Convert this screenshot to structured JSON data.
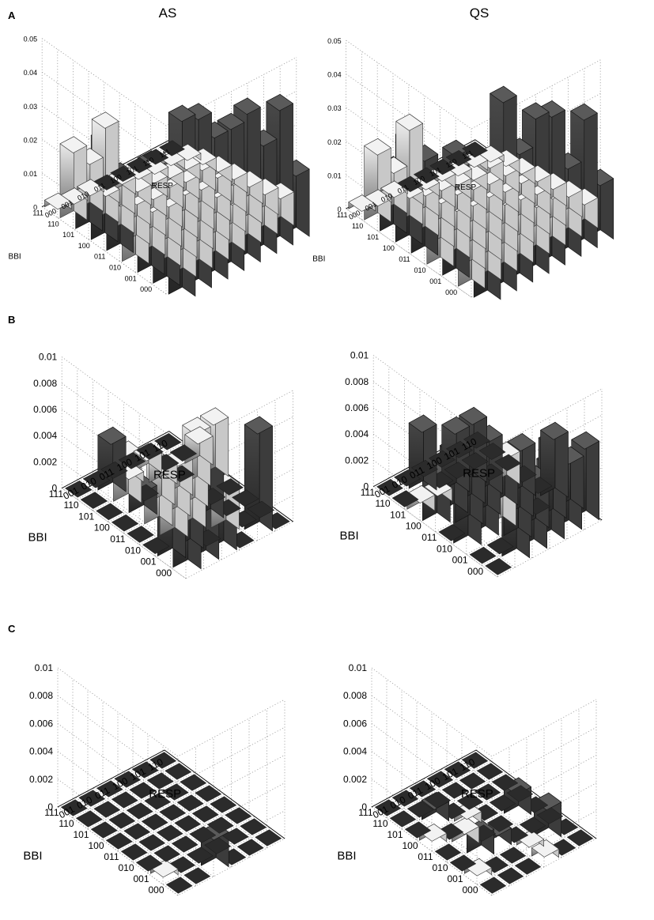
{
  "figure": {
    "panel_labels": [
      "A",
      "B",
      "C"
    ],
    "column_titles": [
      "AS",
      "QS"
    ]
  },
  "colors": {
    "dark": "#3a3a3a",
    "light": "#ececec",
    "floor": "#2b2b2b"
  },
  "chart_data": [
    {
      "id": "A-AS",
      "panel": "A",
      "column": "AS",
      "type": "bar3d",
      "title": "AS",
      "xlabel": "BBI",
      "ylabel": "RESP",
      "bbi_labels": [
        "000",
        "001",
        "010",
        "011",
        "100",
        "101",
        "110",
        "111"
      ],
      "resp_labels": [
        "000",
        "001",
        "010",
        "011",
        "100",
        "101",
        "110",
        "111"
      ],
      "zlim": [
        0,
        0.05
      ],
      "zticks": [
        "0",
        "0.01",
        "0.02",
        "0.03",
        "0.04",
        "0.05"
      ],
      "values": [
        [
          0.037,
          0.022,
          0.017,
          0.017,
          0.015,
          0.012,
          0.013,
          0.01
        ],
        [
          0.034,
          0.017,
          0.013,
          0.014,
          0.013,
          0.01,
          0.011,
          0.008
        ],
        [
          0.024,
          0.015,
          0.011,
          0.012,
          0.011,
          0.009,
          0.01,
          0.007
        ],
        [
          0.024,
          0.013,
          0.009,
          0.008,
          0.009,
          0.008,
          0.009,
          0.006
        ],
        [
          0.031,
          0.01,
          0.008,
          0.007,
          0.008,
          0.007,
          0.008,
          0.005
        ],
        [
          0.018,
          0.03,
          0.011,
          0.006,
          0.006,
          0.005,
          0.005,
          0.004
        ],
        [
          0.022,
          0.016,
          0.004,
          0.005,
          0.004,
          0.003,
          0.003,
          0.002
        ],
        [
          0.002,
          0.001,
          0.001,
          0.0,
          0.0,
          0.0,
          0.0,
          0.0
        ]
      ],
      "dark_rows": [
        0,
        1,
        3,
        4,
        5
      ],
      "dark_cells": [],
      "back_wall": [
        0.054,
        0.052,
        0.044,
        0.044,
        0.046,
        0.034,
        0.042,
        0.02
      ]
    },
    {
      "id": "A-QS",
      "panel": "A",
      "column": "QS",
      "type": "bar3d",
      "title": "QS",
      "xlabel": "BBI",
      "ylabel": "RESP",
      "bbi_labels": [
        "000",
        "001",
        "010",
        "011",
        "100",
        "101",
        "110",
        "111"
      ],
      "resp_labels": [
        "000",
        "001",
        "010",
        "011",
        "100",
        "101",
        "110",
        "111"
      ],
      "zlim": [
        0,
        0.05
      ],
      "zticks": [
        "0",
        "0.01",
        "0.02",
        "0.03",
        "0.04",
        "0.05"
      ],
      "values": [
        [
          0.025,
          0.021,
          0.015,
          0.014,
          0.012,
          0.011,
          0.012,
          0.009
        ],
        [
          0.038,
          0.015,
          0.014,
          0.013,
          0.011,
          0.01,
          0.01,
          0.008
        ],
        [
          0.024,
          0.017,
          0.012,
          0.011,
          0.01,
          0.009,
          0.008,
          0.007
        ],
        [
          0.03,
          0.013,
          0.01,
          0.009,
          0.009,
          0.008,
          0.008,
          0.006
        ],
        [
          0.032,
          0.012,
          0.009,
          0.009,
          0.008,
          0.007,
          0.007,
          0.005
        ],
        [
          0.02,
          0.03,
          0.008,
          0.007,
          0.006,
          0.005,
          0.006,
          0.004
        ],
        [
          0.022,
          0.014,
          0.004,
          0.004,
          0.004,
          0.003,
          0.003,
          0.002
        ],
        [
          0.002,
          0.001,
          0.001,
          0.0,
          0.0,
          0.0,
          0.0,
          0.0
        ]
      ],
      "dark_rows": [
        1,
        3,
        4,
        5
      ],
      "dark_cells": [],
      "back_wall": [
        0.036,
        0.058,
        0.04,
        0.048,
        0.046,
        0.028,
        0.04,
        0.018
      ]
    },
    {
      "id": "B-AS",
      "panel": "B",
      "column": "AS",
      "type": "bar3d",
      "xlabel": "BBI",
      "ylabel": "RESP",
      "bbi_labels": [
        "000",
        "001",
        "010",
        "011",
        "100",
        "101",
        "110",
        "111"
      ],
      "resp_labels": [
        "001",
        "010",
        "011",
        "100",
        "101",
        "110"
      ],
      "zlim": [
        0,
        0.01
      ],
      "zticks": [
        "0",
        "0.002",
        "0.004",
        "0.006",
        "0.008",
        "0.01"
      ],
      "values": [
        [
          0.0042,
          0.0048,
          0.0052,
          0.0,
          0.008,
          0.0
        ],
        [
          0.0042,
          0.006,
          0.0,
          0.0035,
          0.0,
          0.0
        ],
        [
          0.0,
          0.004,
          0.003,
          0.007,
          0.0,
          0.0
        ],
        [
          0.0,
          0.003,
          0.004,
          0.003,
          0.0,
          0.0
        ],
        [
          0.0,
          0.0022,
          0.0032,
          0.0028,
          0.0045,
          0.0045
        ],
        [
          0.0,
          0.004,
          0.0,
          0.0015,
          0.0,
          0.0022
        ],
        [
          0.0,
          0.0042,
          0.0008,
          0.0015,
          0.0,
          0.0
        ],
        [
          0.0,
          0.0,
          0.0,
          0.0,
          0.0,
          0.0
        ]
      ],
      "dark_rows": [],
      "dark_cells": [
        [
          0,
          0
        ],
        [
          0,
          1
        ],
        [
          0,
          2
        ],
        [
          0,
          4
        ],
        [
          1,
          0
        ],
        [
          1,
          1
        ],
        [
          2,
          3
        ],
        [
          4,
          1
        ],
        [
          6,
          1
        ]
      ],
      "back_wall": []
    },
    {
      "id": "B-QS",
      "panel": "B",
      "column": "QS",
      "type": "bar3d",
      "xlabel": "BBI",
      "ylabel": "RESP",
      "bbi_labels": [
        "000",
        "001",
        "010",
        "011",
        "100",
        "101",
        "110",
        "111"
      ],
      "resp_labels": [
        "001",
        "010",
        "011",
        "100",
        "101",
        "110"
      ],
      "zlim": [
        0,
        0.01
      ],
      "zticks": [
        "0",
        "0.002",
        "0.004",
        "0.006",
        "0.008",
        "0.01"
      ],
      "values": [
        [
          0.0,
          0.005,
          0.0045,
          0.006,
          0.005,
          0.006
        ],
        [
          0.0,
          0.0,
          0.005,
          0.004,
          0.006,
          0.004
        ],
        [
          0.005,
          0.004,
          0.003,
          0.005,
          0.0,
          0.005
        ],
        [
          0.0,
          0.0045,
          0.0045,
          0.004,
          0.004,
          0.0
        ],
        [
          0.004,
          0.005,
          0.0042,
          0.0045,
          0.0025,
          0.0
        ],
        [
          0.0012,
          0.001,
          0.005,
          0.005,
          0.0,
          0.0
        ],
        [
          0.0,
          0.005,
          0.0,
          0.0,
          0.0,
          0.0
        ],
        [
          0.0,
          0.0,
          0.0,
          0.0,
          0.0,
          0.0
        ]
      ],
      "dark_rows": [],
      "dark_cells": [
        [
          0,
          1
        ],
        [
          0,
          2
        ],
        [
          0,
          3
        ],
        [
          0,
          4
        ],
        [
          0,
          5
        ],
        [
          1,
          2
        ],
        [
          1,
          3
        ],
        [
          1,
          4
        ],
        [
          1,
          5
        ],
        [
          2,
          0
        ],
        [
          2,
          1
        ],
        [
          2,
          3
        ],
        [
          2,
          5
        ],
        [
          3,
          1
        ],
        [
          3,
          2
        ],
        [
          3,
          3
        ],
        [
          3,
          4
        ],
        [
          4,
          0
        ],
        [
          4,
          1
        ],
        [
          4,
          2
        ],
        [
          4,
          3
        ],
        [
          5,
          2
        ],
        [
          5,
          3
        ],
        [
          6,
          1
        ]
      ],
      "back_wall": []
    },
    {
      "id": "C-AS",
      "panel": "C",
      "column": "AS",
      "type": "bar3d",
      "xlabel": "BBI",
      "ylabel": "RESP",
      "bbi_labels": [
        "000",
        "001",
        "010",
        "011",
        "100",
        "101",
        "110",
        "111"
      ],
      "resp_labels": [
        "001",
        "010",
        "011",
        "100",
        "101",
        "110"
      ],
      "zlim": [
        0,
        0.01
      ],
      "zticks": [
        "0",
        "0.002",
        "0.004",
        "0.006",
        "0.008",
        "0.01"
      ],
      "values": [
        [
          0.0,
          0.0,
          0.0025,
          0.0,
          0.0,
          0.0
        ],
        [
          0.0004,
          0.0,
          0.0,
          0.0,
          0.0,
          0.0
        ],
        [
          0.0,
          0.0,
          0.0,
          0.0,
          0.0,
          0.0
        ],
        [
          0.0,
          0.0,
          0.0,
          0.0,
          0.0,
          0.0
        ],
        [
          0.0,
          0.0,
          0.0,
          0.0,
          0.0,
          0.0
        ],
        [
          0.0,
          0.0,
          0.0,
          0.0,
          0.0,
          0.0
        ],
        [
          0.0,
          0.0,
          0.0,
          0.0,
          0.0,
          0.0
        ],
        [
          0.0,
          0.0,
          0.0,
          0.0,
          0.0,
          0.0
        ]
      ],
      "dark_rows": [],
      "dark_cells": [
        [
          0,
          2
        ]
      ],
      "back_wall": []
    },
    {
      "id": "C-QS",
      "panel": "C",
      "column": "QS",
      "type": "bar3d",
      "xlabel": "BBI",
      "ylabel": "RESP",
      "bbi_labels": [
        "000",
        "001",
        "010",
        "011",
        "100",
        "101",
        "110",
        "111"
      ],
      "resp_labels": [
        "001",
        "010",
        "011",
        "100",
        "101",
        "110"
      ],
      "zlim": [
        0,
        0.01
      ],
      "zticks": [
        "0",
        "0.002",
        "0.004",
        "0.006",
        "0.008",
        "0.01"
      ],
      "values": [
        [
          0.0,
          0.0,
          0.0,
          0.0006,
          0.0,
          0.0
        ],
        [
          0.0005,
          0.0,
          0.0,
          0.0005,
          0.0025,
          0.0
        ],
        [
          0.0,
          0.0018,
          0.0012,
          0.0,
          0.0,
          0.0
        ],
        [
          0.0,
          0.0012,
          0.0,
          0.0,
          0.002,
          0.0
        ],
        [
          0.0006,
          0.0,
          0.0008,
          0.0,
          0.0,
          0.0
        ],
        [
          0.0,
          0.0014,
          0.0,
          0.0,
          0.0,
          0.0
        ],
        [
          0.0,
          0.0,
          0.0,
          0.0,
          0.0,
          0.0
        ],
        [
          0.0,
          0.0,
          0.0,
          0.0,
          0.0,
          0.0
        ]
      ],
      "dark_rows": [],
      "dark_cells": [
        [
          1,
          4
        ],
        [
          2,
          1
        ],
        [
          2,
          2
        ],
        [
          3,
          4
        ],
        [
          5,
          1
        ]
      ],
      "back_wall": []
    }
  ]
}
